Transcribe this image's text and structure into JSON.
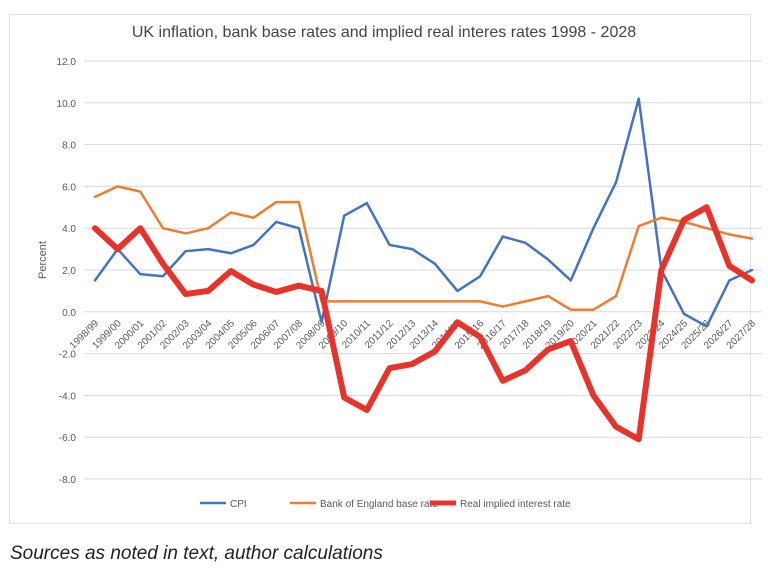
{
  "chart_data": {
    "type": "line",
    "title": "UK inflation, bank base rates and implied real interes rates 1998 - 2028",
    "ylabel": "Percent",
    "xlabel": "",
    "ylim": [
      -8,
      12
    ],
    "yticks": [
      "12.0",
      "10.0",
      "8.0",
      "6.0",
      "4.0",
      "2.0",
      "0.0",
      "-2.0",
      "-4.0",
      "-6.0",
      "-8.0"
    ],
    "grid": true,
    "legend_position": "bottom",
    "categories": [
      "1998/99",
      "1999/00",
      "2000/01",
      "2001/02",
      "2002/03",
      "2003/04",
      "2004/05",
      "2005/06",
      "2006/07",
      "2007/08",
      "2008/09",
      "2009/10",
      "2010/11",
      "2011/12",
      "2012/13",
      "2013/14",
      "2014/15",
      "2015/16",
      "2016/17",
      "2017/18",
      "2018/19",
      "2019/20",
      "2020/21",
      "2021/22",
      "2022/23",
      "2023/24",
      "2024/25",
      "2025/26",
      "2026/27",
      "2027/28"
    ],
    "series": [
      {
        "name": "CPI",
        "color": "#4472c4",
        "values": [
          1.5,
          3.0,
          1.8,
          1.7,
          2.9,
          3.0,
          2.8,
          3.2,
          4.3,
          4.0,
          -0.5,
          4.6,
          5.2,
          3.2,
          3.0,
          2.3,
          1.0,
          1.7,
          3.6,
          3.3,
          2.5,
          1.5,
          4.0,
          6.2,
          10.2,
          2.0,
          -0.1,
          -0.7,
          1.5,
          2.0
        ]
      },
      {
        "name": "Bank of England base rate",
        "color": "#ed7d31",
        "values": [
          5.5,
          6.0,
          5.75,
          4.0,
          3.75,
          4.0,
          4.75,
          4.5,
          5.25,
          5.25,
          0.5,
          0.5,
          0.5,
          0.5,
          0.5,
          0.5,
          0.5,
          0.5,
          0.25,
          0.5,
          0.75,
          0.1,
          0.1,
          0.75,
          4.1,
          4.5,
          4.3,
          4.0,
          3.7,
          3.5
        ]
      },
      {
        "name": "Real implied interest rate",
        "color": "#e8332a",
        "values": [
          4.0,
          3.0,
          4.0,
          2.3,
          0.85,
          1.0,
          1.95,
          1.3,
          0.95,
          1.25,
          1.0,
          -4.1,
          -4.7,
          -2.7,
          -2.5,
          -1.9,
          -0.5,
          -1.2,
          -3.3,
          -2.8,
          -1.8,
          -1.4,
          -4.0,
          -5.5,
          -6.1,
          2.0,
          4.4,
          5.0,
          2.2,
          1.5
        ]
      }
    ]
  },
  "footnote": "Sources as noted in text, author calculations"
}
